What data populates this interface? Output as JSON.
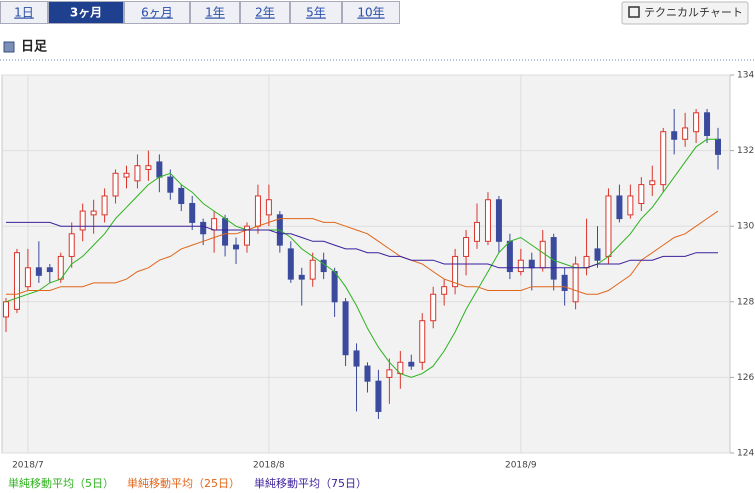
{
  "tabs": [
    {
      "label": "1日",
      "selected": false
    },
    {
      "label": "3ヶ月",
      "selected": true
    },
    {
      "label": "6ヶ月",
      "selected": false
    },
    {
      "label": "1年",
      "selected": false
    },
    {
      "label": "2年",
      "selected": false
    },
    {
      "label": "5年",
      "selected": false
    },
    {
      "label": "10年",
      "selected": false
    }
  ],
  "button": "テクニカルチャート",
  "heading": "日足",
  "chart_data": {
    "type": "candlestick",
    "categories": [
      null,
      null,
      "2018/7",
      null,
      null,
      null,
      null,
      null,
      null,
      null,
      null,
      null,
      null,
      null,
      null,
      null,
      null,
      null,
      null,
      null,
      null,
      null,
      null,
      null,
      "2018/8",
      null,
      null,
      null,
      null,
      null,
      null,
      null,
      null,
      null,
      null,
      null,
      null,
      null,
      null,
      null,
      null,
      null,
      null,
      null,
      null,
      null,
      null,
      "2018/9",
      null,
      null,
      null,
      null,
      null,
      null,
      null,
      null,
      null,
      null,
      null,
      null,
      null,
      null,
      null,
      null,
      null,
      null
    ],
    "ohlc": {
      "open": [
        127.6,
        127.8,
        128.4,
        128.9,
        128.9,
        128.6,
        129.2,
        129.9,
        130.3,
        130.3,
        130.8,
        131.3,
        131.2,
        131.5,
        131.7,
        131.3,
        131.0,
        130.6,
        130.1,
        129.9,
        130.2,
        129.5,
        129.5,
        130.0,
        130.3,
        130.3,
        129.4,
        128.7,
        128.6,
        129.1,
        128.8,
        128.0,
        126.7,
        126.3,
        125.9,
        126.0,
        126.1,
        126.4,
        126.4,
        127.5,
        128.2,
        128.4,
        129.2,
        129.6,
        129.6,
        130.7,
        129.6,
        128.8,
        129.1,
        128.9,
        129.7,
        128.7,
        128.0,
        128.9,
        129.4,
        129.2,
        130.8,
        130.3,
        130.6,
        131.1,
        131.1,
        132.5,
        132.3,
        132.5,
        133.0,
        132.3
      ],
      "high": [
        128.1,
        129.4,
        129.4,
        129.6,
        129.0,
        129.3,
        130.1,
        130.6,
        130.7,
        131.0,
        131.5,
        131.6,
        131.9,
        132.0,
        131.9,
        131.5,
        131.1,
        130.8,
        130.2,
        130.4,
        130.3,
        129.7,
        130.1,
        131.1,
        131.1,
        130.4,
        129.6,
        128.9,
        129.3,
        129.3,
        128.9,
        128.1,
        126.9,
        126.4,
        126.2,
        126.5,
        126.7,
        126.6,
        127.7,
        128.4,
        128.6,
        129.4,
        129.9,
        130.6,
        130.9,
        130.8,
        129.8,
        129.4,
        129.3,
        129.9,
        129.8,
        128.9,
        129.2,
        130.2,
        130.0,
        131.0,
        131.1,
        131.1,
        131.3,
        131.6,
        132.6,
        133.1,
        133.0,
        133.1,
        133.1,
        132.6
      ],
      "low": [
        127.2,
        127.7,
        128.3,
        128.5,
        128.5,
        128.5,
        128.9,
        129.6,
        129.8,
        130.1,
        130.6,
        131.0,
        131.0,
        131.2,
        130.9,
        130.7,
        130.4,
        129.9,
        129.5,
        129.3,
        129.2,
        129.0,
        129.3,
        129.8,
        130.0,
        129.3,
        128.5,
        127.9,
        128.4,
        128.6,
        127.6,
        126.3,
        125.1,
        125.6,
        124.9,
        125.3,
        125.7,
        126.2,
        126.2,
        127.3,
        127.9,
        128.2,
        128.7,
        129.4,
        129.5,
        129.3,
        128.6,
        128.7,
        128.3,
        128.8,
        128.3,
        127.9,
        127.8,
        128.7,
        128.9,
        129.0,
        130.1,
        130.2,
        130.4,
        130.8,
        130.9,
        131.9,
        132.1,
        132.2,
        132.2,
        131.5
      ],
      "close": [
        128.0,
        129.3,
        128.9,
        128.7,
        128.8,
        129.2,
        129.8,
        130.4,
        130.4,
        130.8,
        131.4,
        131.4,
        131.6,
        131.6,
        131.3,
        130.9,
        130.6,
        130.1,
        129.8,
        130.2,
        129.5,
        129.4,
        130.0,
        130.8,
        130.7,
        129.5,
        128.6,
        128.6,
        129.1,
        128.8,
        128.0,
        126.6,
        126.3,
        125.9,
        125.1,
        126.2,
        126.4,
        126.3,
        127.5,
        128.2,
        128.4,
        129.2,
        129.7,
        130.1,
        130.7,
        129.6,
        128.8,
        129.1,
        128.9,
        129.6,
        128.6,
        128.3,
        129.0,
        129.2,
        129.1,
        130.8,
        130.2,
        130.8,
        131.1,
        131.2,
        132.5,
        132.3,
        132.6,
        133.0,
        132.4,
        131.9
      ]
    },
    "up_color": "#d9352b",
    "down_color": "#3b4a9c",
    "series": [
      {
        "name": "単純移動平均（5日）",
        "color": "#2db31e",
        "values": [
          128.0,
          128.1,
          128.2,
          128.3,
          128.5,
          128.6,
          129.0,
          129.2,
          129.5,
          129.8,
          130.2,
          130.5,
          130.8,
          131.1,
          131.3,
          131.4,
          131.1,
          130.9,
          130.6,
          130.4,
          130.2,
          130.0,
          129.9,
          129.9,
          129.9,
          129.9,
          129.7,
          129.4,
          129.2,
          129.0,
          128.8,
          128.4,
          127.9,
          127.3,
          126.8,
          126.4,
          126.1,
          126.0,
          126.1,
          126.3,
          126.7,
          127.2,
          127.8,
          128.3,
          128.8,
          129.3,
          129.6,
          129.7,
          129.5,
          129.3,
          129.1,
          129.0,
          128.9,
          128.9,
          129.0,
          129.2,
          129.5,
          129.8,
          130.2,
          130.5,
          130.9,
          131.3,
          131.7,
          132.1,
          132.3,
          132.3
        ]
      },
      {
        "name": "単純移動平均（25日）",
        "color": "#e0661a",
        "values": [
          128.2,
          128.2,
          128.3,
          128.3,
          128.3,
          128.4,
          128.4,
          128.4,
          128.5,
          128.5,
          128.5,
          128.6,
          128.8,
          128.9,
          129.1,
          129.2,
          129.4,
          129.5,
          129.6,
          129.7,
          129.8,
          129.8,
          129.9,
          130.0,
          130.1,
          130.2,
          130.2,
          130.2,
          130.2,
          130.1,
          130.1,
          130.0,
          129.9,
          129.8,
          129.6,
          129.4,
          129.2,
          129.1,
          129.0,
          128.8,
          128.6,
          128.5,
          128.4,
          128.4,
          128.3,
          128.3,
          128.3,
          128.3,
          128.4,
          128.4,
          128.4,
          128.4,
          128.3,
          128.2,
          128.2,
          128.3,
          128.5,
          128.7,
          129.1,
          129.3,
          129.5,
          129.7,
          129.8,
          130.0,
          130.2,
          130.4
        ]
      },
      {
        "name": "単純移動平均（75日）",
        "color": "#3b1f9c",
        "values": [
          130.1,
          130.1,
          130.1,
          130.1,
          130.1,
          130.0,
          130.0,
          130.0,
          130.0,
          130.0,
          130.0,
          130.0,
          130.0,
          130.0,
          130.0,
          130.0,
          130.0,
          130.0,
          130.0,
          129.9,
          129.9,
          129.9,
          129.9,
          129.9,
          129.9,
          129.8,
          129.8,
          129.7,
          129.6,
          129.6,
          129.5,
          129.4,
          129.4,
          129.3,
          129.3,
          129.2,
          129.2,
          129.1,
          129.1,
          129.1,
          129.0,
          129.0,
          129.0,
          129.0,
          129.0,
          128.9,
          128.9,
          128.9,
          128.9,
          128.9,
          128.9,
          128.9,
          128.9,
          128.9,
          129.0,
          129.0,
          129.0,
          129.1,
          129.1,
          129.1,
          129.2,
          129.2,
          129.2,
          129.3,
          129.3,
          129.3
        ]
      }
    ],
    "ylim": [
      124,
      134
    ],
    "yticks": [
      124,
      126,
      128,
      130,
      132,
      134
    ],
    "grid": true
  }
}
